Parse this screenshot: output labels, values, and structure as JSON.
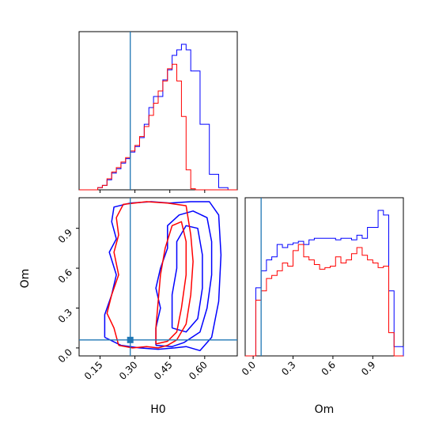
{
  "chart_data": {
    "type": "corner",
    "parameters": [
      "H0",
      "Om"
    ],
    "xlabel": "H0",
    "ylabel": "Om",
    "xlabel_right": "Om",
    "colors": {
      "series_a": "#0000ff",
      "series_b": "#ff0000",
      "truth": "#1f77b4"
    },
    "truth": {
      "H0": 0.28,
      "Om": 0.06
    },
    "H0_range": [
      0.06,
      0.74
    ],
    "Om_range": [
      -0.06,
      1.13
    ],
    "H0_ticks": [
      "0.15",
      "0.30",
      "0.45",
      "0.60"
    ],
    "Om_ticks": [
      "0.0",
      "0.3",
      "0.6",
      "0.9"
    ],
    "H0_hist_edges": [
      0.06,
      0.08,
      0.1,
      0.12,
      0.14,
      0.16,
      0.18,
      0.2,
      0.22,
      0.24,
      0.26,
      0.28,
      0.3,
      0.32,
      0.34,
      0.36,
      0.38,
      0.4,
      0.42,
      0.44,
      0.46,
      0.48,
      0.5,
      0.52,
      0.54,
      0.56,
      0.58,
      0.6,
      0.62,
      0.64,
      0.66,
      0.68,
      0.7,
      0.72,
      0.74
    ],
    "H0_hist_series": [
      {
        "color": "#0000ff",
        "counts": [
          0,
          0,
          0,
          0,
          2,
          4,
          9,
          15,
          19,
          24,
          28,
          34,
          39,
          47,
          59,
          74,
          84,
          84,
          99,
          108,
          121,
          126,
          131,
          126,
          107,
          107,
          59,
          59,
          14,
          14,
          2,
          2,
          0,
          0
        ]
      },
      {
        "color": "#ff0000",
        "counts": [
          0,
          0,
          0,
          0,
          2,
          4,
          10,
          16,
          20,
          25,
          29,
          35,
          40,
          48,
          57,
          67,
          78,
          89,
          98,
          109,
          113,
          98,
          66,
          18,
          1,
          0,
          0,
          0,
          0,
          0,
          0,
          0,
          0,
          0
        ]
      }
    ],
    "Om_hist_edges": [
      -0.06,
      -0.02,
      0.02,
      0.06,
      0.1,
      0.14,
      0.18,
      0.22,
      0.26,
      0.3,
      0.34,
      0.38,
      0.42,
      0.46,
      0.5,
      0.54,
      0.58,
      0.62,
      0.66,
      0.7,
      0.74,
      0.78,
      0.82,
      0.86,
      0.9,
      0.94,
      0.98,
      1.02,
      1.06,
      1.1,
      1.13
    ],
    "Om_hist_series": [
      {
        "color": "#0000ff",
        "counts": [
          0,
          0,
          0.44,
          0.55,
          0.62,
          0.64,
          0.72,
          0.7,
          0.72,
          0.73,
          0.74,
          0.72,
          0.75,
          0.76,
          0.76,
          0.76,
          0.76,
          0.75,
          0.76,
          0.76,
          0.75,
          0.78,
          0.76,
          0.83,
          0.83,
          0.94,
          0.91,
          0.42,
          0.06,
          0.06
        ]
      },
      {
        "color": "#ff0000",
        "counts": [
          0,
          0,
          0.36,
          0.42,
          0.5,
          0.52,
          0.55,
          0.6,
          0.58,
          0.68,
          0.72,
          0.64,
          0.62,
          0.59,
          0.56,
          0.57,
          0.58,
          0.64,
          0.6,
          0.62,
          0.66,
          0.7,
          0.65,
          0.62,
          0.6,
          0.57,
          0.58,
          0.15,
          0,
          0
        ]
      }
    ],
    "contours": [
      {
        "color": "#0000ff",
        "points": [
          [
            0.17,
            0.08
          ],
          [
            0.24,
            0.02
          ],
          [
            0.32,
            0.0
          ],
          [
            0.4,
            -0.01
          ],
          [
            0.47,
            0.0
          ],
          [
            0.52,
            0.01
          ],
          [
            0.58,
            -0.02
          ],
          [
            0.63,
            0.08
          ],
          [
            0.66,
            0.35
          ],
          [
            0.67,
            0.7
          ],
          [
            0.66,
            1.0
          ],
          [
            0.62,
            1.1
          ],
          [
            0.54,
            1.1
          ],
          [
            0.45,
            1.09
          ],
          [
            0.37,
            1.1
          ],
          [
            0.28,
            1.09
          ],
          [
            0.21,
            1.06
          ],
          [
            0.2,
            0.95
          ],
          [
            0.22,
            0.82
          ],
          [
            0.19,
            0.72
          ],
          [
            0.22,
            0.55
          ],
          [
            0.2,
            0.4
          ],
          [
            0.17,
            0.25
          ],
          [
            0.17,
            0.08
          ]
        ]
      },
      {
        "color": "#0000ff",
        "points": [
          [
            0.39,
            0.02
          ],
          [
            0.46,
            0.01
          ],
          [
            0.51,
            0.04
          ],
          [
            0.58,
            0.12
          ],
          [
            0.61,
            0.3
          ],
          [
            0.63,
            0.55
          ],
          [
            0.63,
            0.8
          ],
          [
            0.61,
            0.98
          ],
          [
            0.55,
            1.03
          ],
          [
            0.49,
            1.0
          ],
          [
            0.44,
            0.92
          ],
          [
            0.44,
            0.75
          ],
          [
            0.41,
            0.6
          ],
          [
            0.39,
            0.45
          ],
          [
            0.41,
            0.3
          ],
          [
            0.39,
            0.15
          ],
          [
            0.39,
            0.02
          ]
        ]
      },
      {
        "color": "#0000ff",
        "points": [
          [
            0.46,
            0.15
          ],
          [
            0.52,
            0.12
          ],
          [
            0.57,
            0.22
          ],
          [
            0.59,
            0.45
          ],
          [
            0.59,
            0.7
          ],
          [
            0.57,
            0.9
          ],
          [
            0.52,
            0.92
          ],
          [
            0.48,
            0.8
          ],
          [
            0.48,
            0.6
          ],
          [
            0.46,
            0.4
          ],
          [
            0.46,
            0.15
          ]
        ]
      },
      {
        "color": "#ff0000",
        "points": [
          [
            0.23,
            0.02
          ],
          [
            0.29,
            0.0
          ],
          [
            0.35,
            0.01
          ],
          [
            0.4,
            0.0
          ],
          [
            0.44,
            0.02
          ],
          [
            0.48,
            0.06
          ],
          [
            0.52,
            0.18
          ],
          [
            0.54,
            0.4
          ],
          [
            0.55,
            0.65
          ],
          [
            0.54,
            0.85
          ],
          [
            0.52,
            1.07
          ],
          [
            0.44,
            1.09
          ],
          [
            0.35,
            1.1
          ],
          [
            0.25,
            1.08
          ],
          [
            0.22,
            0.98
          ],
          [
            0.23,
            0.85
          ],
          [
            0.21,
            0.72
          ],
          [
            0.23,
            0.55
          ],
          [
            0.2,
            0.4
          ],
          [
            0.18,
            0.26
          ],
          [
            0.21,
            0.15
          ],
          [
            0.23,
            0.02
          ]
        ]
      },
      {
        "color": "#ff0000",
        "points": [
          [
            0.39,
            0.03
          ],
          [
            0.44,
            0.05
          ],
          [
            0.48,
            0.12
          ],
          [
            0.5,
            0.3
          ],
          [
            0.52,
            0.55
          ],
          [
            0.52,
            0.8
          ],
          [
            0.5,
            0.95
          ],
          [
            0.46,
            0.92
          ],
          [
            0.43,
            0.75
          ],
          [
            0.41,
            0.55
          ],
          [
            0.4,
            0.35
          ],
          [
            0.39,
            0.15
          ],
          [
            0.39,
            0.03
          ]
        ]
      }
    ]
  }
}
